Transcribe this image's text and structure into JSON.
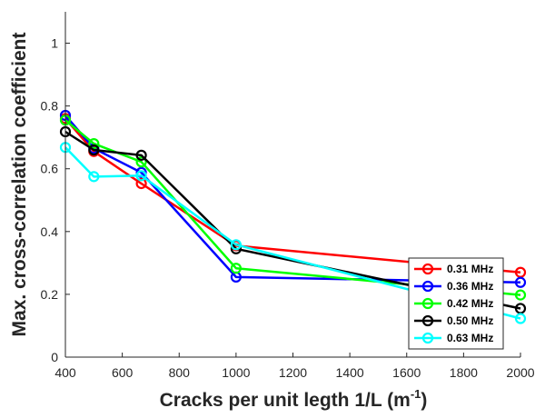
{
  "chart_data": {
    "type": "line",
    "xlabel": "Cracks per unit legth 1/L (m",
    "xlabel_sup": "-1",
    "xlabel_tail": ")",
    "ylabel": "Max. cross-correlation coefficient",
    "xlim": [
      400,
      2000
    ],
    "ylim": [
      0,
      1.1
    ],
    "xticks": [
      400,
      600,
      800,
      1000,
      1200,
      1400,
      1600,
      1800,
      2000
    ],
    "yticks": [
      0,
      0.2,
      0.4,
      0.6,
      0.8,
      1
    ],
    "ytick_labels": [
      "0",
      "0.2",
      "0.4",
      "0.6",
      "0.8",
      "1"
    ],
    "grid": false,
    "legend_position": "bottom-right",
    "x": [
      400,
      500,
      667,
      1000,
      2000
    ],
    "series": [
      {
        "name": "0.31 MHz",
        "color": "#ff0000",
        "values": [
          0.76,
          0.655,
          0.553,
          0.355,
          0.27
        ]
      },
      {
        "name": "0.36 MHz",
        "color": "#0000ff",
        "values": [
          0.77,
          0.665,
          0.588,
          0.255,
          0.238
        ]
      },
      {
        "name": "0.42 MHz",
        "color": "#00ff00",
        "values": [
          0.755,
          0.68,
          0.622,
          0.283,
          0.198
        ]
      },
      {
        "name": "0.50 MHz",
        "color": "#000000",
        "values": [
          0.718,
          0.66,
          0.643,
          0.345,
          0.155
        ]
      },
      {
        "name": "0.63 MHz",
        "color": "#00ffff",
        "values": [
          0.668,
          0.575,
          0.578,
          0.358,
          0.123
        ]
      }
    ]
  }
}
